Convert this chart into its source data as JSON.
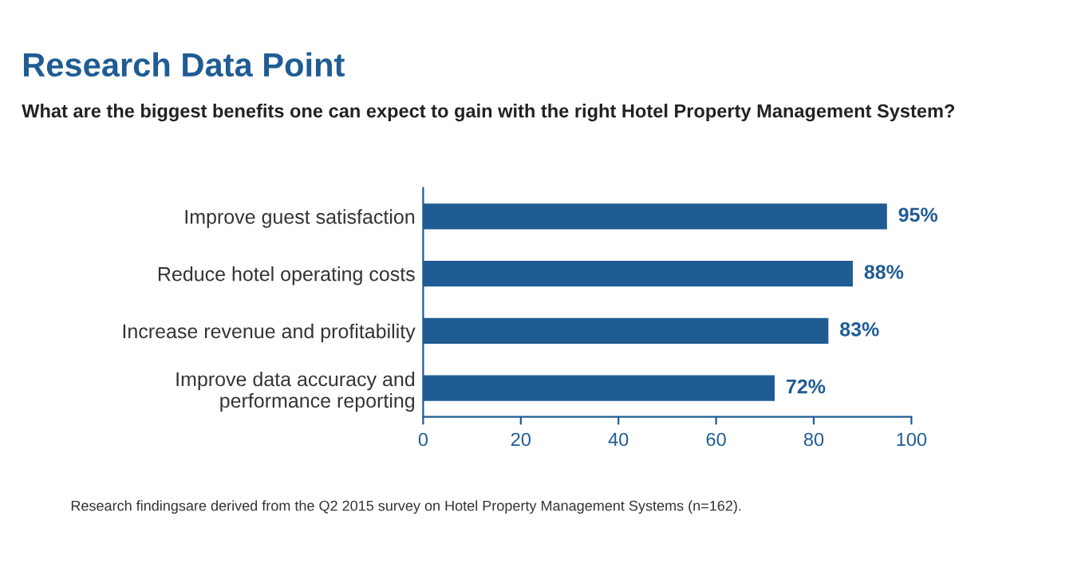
{
  "chart_data": {
    "type": "bar",
    "orientation": "horizontal",
    "title": "Research Data Point",
    "subtitle": "What are the biggest benefits one can expect to gain with the right Hotel Property Management System?",
    "categories": [
      "Improve guest satisfaction",
      "Reduce hotel operating costs",
      "Increase revenue and profitability",
      "Improve data accuracy and\nperformance reporting"
    ],
    "values": [
      95,
      88,
      83,
      72
    ],
    "value_labels": [
      "95%",
      "88%",
      "83%",
      "72%"
    ],
    "color": "#1f5c94",
    "xlim": [
      0,
      100
    ],
    "xticks": [
      0,
      20,
      40,
      60,
      80,
      100
    ],
    "grid": false,
    "legend": false,
    "annotations": [
      "Research findingsare derived from the Q2 2015 survey on Hotel Property Management Systems (n=162)."
    ]
  }
}
